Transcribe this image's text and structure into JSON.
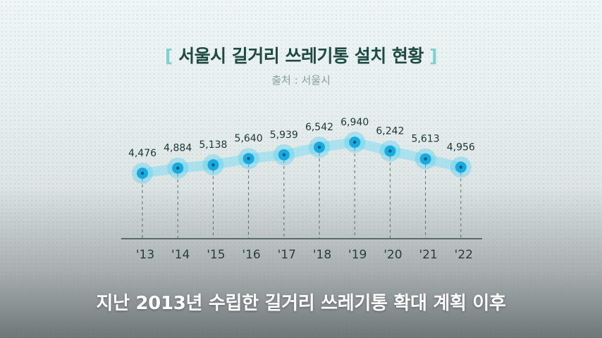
{
  "title": {
    "bracket_left": "[",
    "text": "서울시 길거리 쓰레기통 설치 현황",
    "bracket_right": "]"
  },
  "source": "출처 : 서울시",
  "caption": "지난 2013년 수립한 길거리 쓰레기통 확대 계획 이후",
  "colors": {
    "line": "#7fdcf0",
    "marker_outer": "#5fd2ef",
    "marker_inner": "#18a9e0",
    "axis": "#3a4e4d",
    "value_text": "#1f3533",
    "tick_text": "#2a3d3b"
  },
  "chart_data": {
    "type": "line",
    "title": "서울시 길거리 쓰레기통 설치 현황",
    "categories": [
      "'13",
      "'14",
      "'15",
      "'16",
      "'17",
      "'18",
      "'19",
      "'20",
      "'21",
      "'22"
    ],
    "values": [
      4476,
      4884,
      5138,
      5640,
      5939,
      6542,
      6940,
      6242,
      5613,
      4956
    ],
    "value_labels": [
      "4,476",
      "4,884",
      "5,138",
      "5,640",
      "5,939",
      "6,542",
      "6,940",
      "6,242",
      "5,613",
      "4,956"
    ],
    "xlabel": "",
    "ylabel": "",
    "grid": false,
    "legend": "none"
  }
}
